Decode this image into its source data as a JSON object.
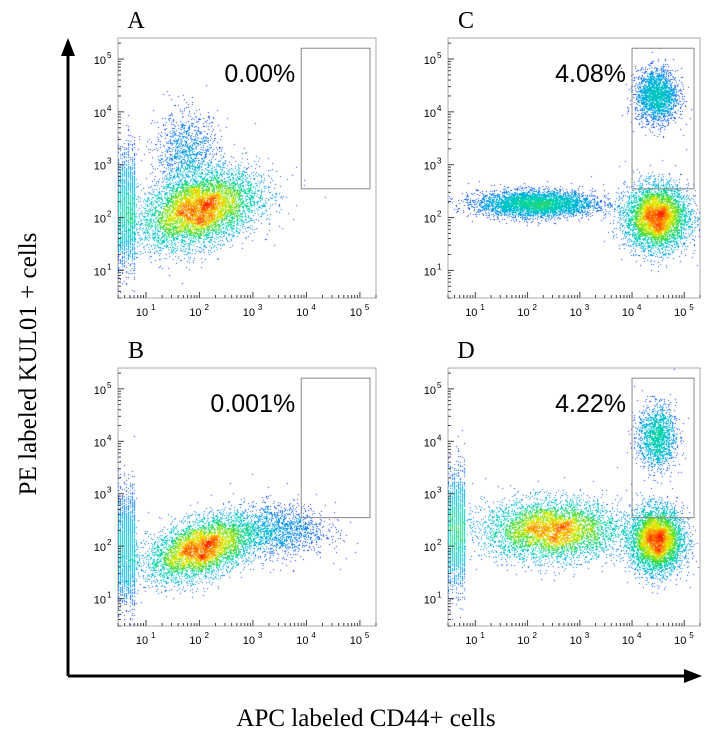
{
  "figure": {
    "y_axis_label": "PE labeled KUL01 + cells",
    "x_axis_label": "APC labeled CD44+ cells",
    "tick_base": "10",
    "tick_exponents": [
      "1",
      "2",
      "3",
      "4",
      "5"
    ]
  },
  "colors": {
    "density_low": "#1a1aff",
    "density_mid": "#00c8c8",
    "density_mid2": "#40e040",
    "density_high": "#ffee00",
    "density_peak": "#ff2000",
    "gate": "#888888",
    "frame": "#aaaaaa"
  },
  "chart_data": [
    {
      "type": "scatter",
      "panel": "A",
      "percent_label": "0.00%",
      "x_scale": "log",
      "y_scale": "log",
      "xlim": [
        3,
        200000
      ],
      "ylim": [
        3,
        250000
      ],
      "gate": {
        "x_range": [
          8000,
          200000
        ],
        "y_range": [
          350,
          160000
        ]
      },
      "populations": [
        {
          "center": [
            100,
            140
          ],
          "spread": [
            0.55,
            0.35
          ],
          "weight": 1.0,
          "corr": 0.35
        },
        {
          "center": [
            60,
            1500
          ],
          "spread": [
            0.3,
            0.4
          ],
          "weight": 0.05,
          "corr": 0.0
        }
      ],
      "left_edge_pileup": true
    },
    {
      "type": "scatter",
      "panel": "C",
      "percent_label": "4.08%",
      "x_scale": "log",
      "y_scale": "log",
      "xlim": [
        3,
        200000
      ],
      "ylim": [
        3,
        250000
      ],
      "gate": {
        "x_range": [
          10000,
          200000
        ],
        "y_range": [
          350,
          160000
        ]
      },
      "populations": [
        {
          "center": [
            30000,
            100
          ],
          "spread": [
            0.3,
            0.3
          ],
          "weight": 1.0,
          "corr": 0.0
        },
        {
          "center": [
            30000,
            20000
          ],
          "spread": [
            0.2,
            0.25
          ],
          "weight": 0.12,
          "corr": 0.0
        },
        {
          "center": [
            150,
            180
          ],
          "spread": [
            0.55,
            0.12
          ],
          "weight": 0.25,
          "corr": 0.0
        }
      ],
      "left_edge_pileup": false
    },
    {
      "type": "scatter",
      "panel": "B",
      "percent_label": "0.001%",
      "x_scale": "log",
      "y_scale": "log",
      "xlim": [
        3,
        200000
      ],
      "ylim": [
        3,
        250000
      ],
      "gate": {
        "x_range": [
          8000,
          200000
        ],
        "y_range": [
          350,
          160000
        ]
      },
      "populations": [
        {
          "center": [
            110,
            90
          ],
          "spread": [
            0.5,
            0.3
          ],
          "weight": 1.0,
          "corr": 0.45
        },
        {
          "center": [
            3000,
            200
          ],
          "spread": [
            0.45,
            0.25
          ],
          "weight": 0.06,
          "corr": 0.0
        }
      ],
      "left_edge_pileup": true
    },
    {
      "type": "scatter",
      "panel": "D",
      "percent_label": "4.22%",
      "x_scale": "log",
      "y_scale": "log",
      "xlim": [
        3,
        200000
      ],
      "ylim": [
        3,
        250000
      ],
      "gate": {
        "x_range": [
          10000,
          200000
        ],
        "y_range": [
          350,
          160000
        ]
      },
      "populations": [
        {
          "center": [
            300,
            200
          ],
          "spread": [
            0.65,
            0.28
          ],
          "weight": 1.0,
          "corr": 0.0
        },
        {
          "center": [
            30000,
            130
          ],
          "spread": [
            0.25,
            0.3
          ],
          "weight": 0.5,
          "corr": 0.0
        },
        {
          "center": [
            30000,
            12000
          ],
          "spread": [
            0.18,
            0.3
          ],
          "weight": 0.1,
          "corr": 0.0
        }
      ],
      "left_edge_pileup": true
    }
  ]
}
